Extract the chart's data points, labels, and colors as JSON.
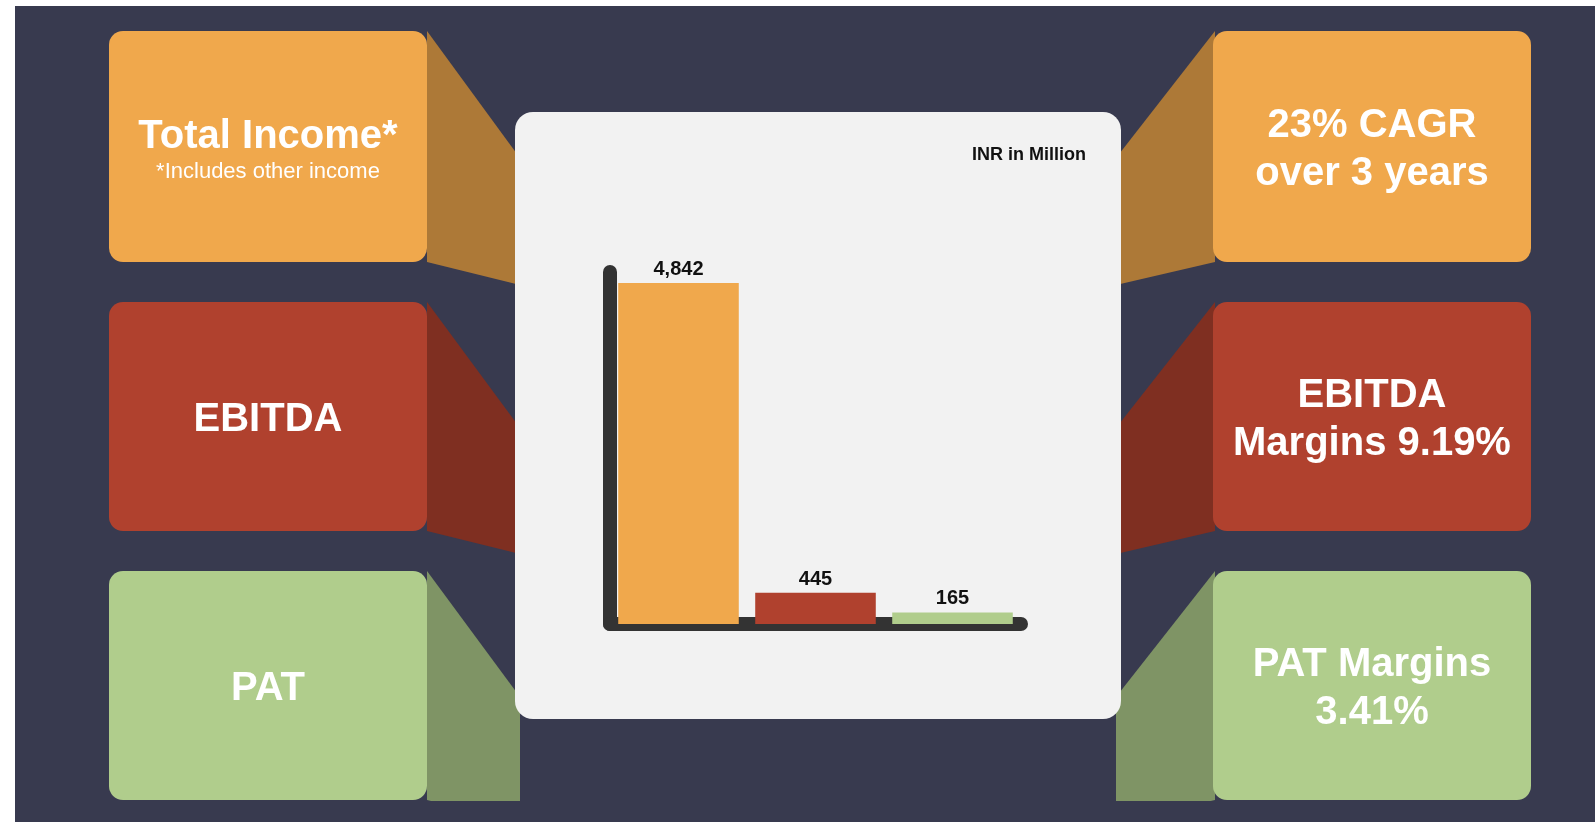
{
  "chart_data": {
    "type": "bar",
    "title": "INR in Million",
    "categories": [
      null,
      null,
      null
    ],
    "values": [
      4842,
      445,
      165
    ],
    "colors": [
      "#f0a84c",
      "#b0412e",
      "#b0cd8c"
    ],
    "value_labels": [
      "4,842",
      "445",
      "165"
    ],
    "annotations": [
      "Total Income*",
      "EBITDA",
      "PAT",
      "23% CAGR over 3 years",
      "EBITDA Margins 9.19%",
      "PAT Margins 3.41%",
      "*Includes other income"
    ],
    "grid": false
  }
}
